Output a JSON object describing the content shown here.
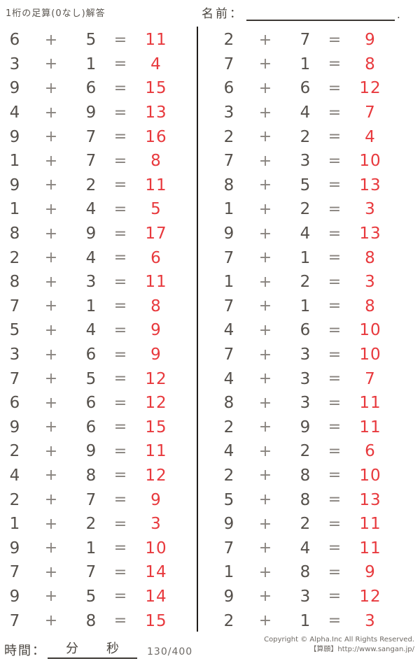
{
  "header": {
    "title": "1桁の足算(0なし)解答",
    "name_label": "名前：",
    "name_line_end": "."
  },
  "operators": {
    "plus": "+",
    "equals": "="
  },
  "colors": {
    "answer_red": "#e8393d",
    "digit": "#55504b",
    "operator": "#87827d"
  },
  "columns": {
    "left": [
      {
        "a": 6,
        "b": 5,
        "answer": 11
      },
      {
        "a": 3,
        "b": 1,
        "answer": 4
      },
      {
        "a": 9,
        "b": 6,
        "answer": 15
      },
      {
        "a": 4,
        "b": 9,
        "answer": 13
      },
      {
        "a": 9,
        "b": 7,
        "answer": 16
      },
      {
        "a": 1,
        "b": 7,
        "answer": 8
      },
      {
        "a": 9,
        "b": 2,
        "answer": 11
      },
      {
        "a": 1,
        "b": 4,
        "answer": 5
      },
      {
        "a": 8,
        "b": 9,
        "answer": 17
      },
      {
        "a": 2,
        "b": 4,
        "answer": 6
      },
      {
        "a": 8,
        "b": 3,
        "answer": 11
      },
      {
        "a": 7,
        "b": 1,
        "answer": 8
      },
      {
        "a": 5,
        "b": 4,
        "answer": 9
      },
      {
        "a": 3,
        "b": 6,
        "answer": 9
      },
      {
        "a": 7,
        "b": 5,
        "answer": 12
      },
      {
        "a": 6,
        "b": 6,
        "answer": 12
      },
      {
        "a": 9,
        "b": 6,
        "answer": 15
      },
      {
        "a": 2,
        "b": 9,
        "answer": 11
      },
      {
        "a": 4,
        "b": 8,
        "answer": 12
      },
      {
        "a": 2,
        "b": 7,
        "answer": 9
      },
      {
        "a": 1,
        "b": 2,
        "answer": 3
      },
      {
        "a": 9,
        "b": 1,
        "answer": 10
      },
      {
        "a": 7,
        "b": 7,
        "answer": 14
      },
      {
        "a": 9,
        "b": 5,
        "answer": 14
      },
      {
        "a": 7,
        "b": 8,
        "answer": 15
      }
    ],
    "right": [
      {
        "a": 2,
        "b": 7,
        "answer": 9
      },
      {
        "a": 7,
        "b": 1,
        "answer": 8
      },
      {
        "a": 6,
        "b": 6,
        "answer": 12
      },
      {
        "a": 3,
        "b": 4,
        "answer": 7
      },
      {
        "a": 2,
        "b": 2,
        "answer": 4
      },
      {
        "a": 7,
        "b": 3,
        "answer": 10
      },
      {
        "a": 8,
        "b": 5,
        "answer": 13
      },
      {
        "a": 1,
        "b": 2,
        "answer": 3
      },
      {
        "a": 9,
        "b": 4,
        "answer": 13
      },
      {
        "a": 7,
        "b": 1,
        "answer": 8
      },
      {
        "a": 1,
        "b": 2,
        "answer": 3
      },
      {
        "a": 7,
        "b": 1,
        "answer": 8
      },
      {
        "a": 4,
        "b": 6,
        "answer": 10
      },
      {
        "a": 7,
        "b": 3,
        "answer": 10
      },
      {
        "a": 4,
        "b": 3,
        "answer": 7
      },
      {
        "a": 8,
        "b": 3,
        "answer": 11
      },
      {
        "a": 2,
        "b": 9,
        "answer": 11
      },
      {
        "a": 4,
        "b": 2,
        "answer": 6
      },
      {
        "a": 2,
        "b": 8,
        "answer": 10
      },
      {
        "a": 5,
        "b": 8,
        "answer": 13
      },
      {
        "a": 9,
        "b": 2,
        "answer": 11
      },
      {
        "a": 7,
        "b": 4,
        "answer": 11
      },
      {
        "a": 1,
        "b": 8,
        "answer": 9
      },
      {
        "a": 9,
        "b": 3,
        "answer": 12
      },
      {
        "a": 2,
        "b": 1,
        "answer": 3
      }
    ]
  },
  "footer": {
    "time_label": "時間：",
    "minutes_label": "分",
    "seconds_label": "秒",
    "page_number": "130/400",
    "copyright_line1": "Copyright © Alpha.Inc All Rights Reserved.",
    "copyright_line2": "【算願】http://www.sangan.jp/"
  }
}
